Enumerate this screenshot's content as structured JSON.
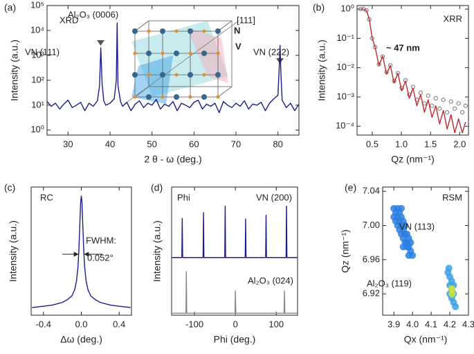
{
  "chart_data": [
    {
      "type": "line",
      "panel_label": "(a)",
      "xlabel": "2 θ - ω (deg.)",
      "ylabel": "Intensity (a.u.)",
      "xlim": [
        25,
        85
      ],
      "xticks": [
        30,
        40,
        50,
        60,
        70,
        80
      ],
      "ylog": true,
      "ylim": [
        0.63,
        100000
      ],
      "yticks": [
        {
          "value": 1,
          "label": "10⁰"
        },
        {
          "value": 10,
          "label": "10¹"
        },
        {
          "value": 100,
          "label": "10²"
        },
        {
          "value": 1000,
          "label": "10³"
        },
        {
          "value": 10000,
          "label": "10⁴"
        },
        {
          "value": 100000,
          "label": "10⁵"
        }
      ],
      "x": [
        25,
        26,
        27,
        28,
        29,
        30,
        31,
        32,
        33,
        34,
        35,
        36,
        37,
        37.5,
        37.8,
        38.1,
        38.5,
        39,
        40,
        41,
        41.5,
        41.7,
        41.9,
        42.5,
        43,
        44,
        45,
        46,
        47,
        48,
        49,
        50,
        51,
        52,
        53,
        54,
        55,
        56,
        57,
        58,
        59,
        60,
        61,
        62,
        63,
        64,
        65,
        66,
        67,
        68,
        69,
        70,
        71,
        72,
        73,
        74,
        75,
        76,
        77,
        78,
        79,
        80,
        80.3,
        80.5,
        80.7,
        81,
        82,
        83,
        84,
        85
      ],
      "series": [
        {
          "color": "#1a1a8c",
          "mode": "line",
          "values": [
            14,
            9,
            12,
            7,
            11,
            16,
            8,
            10,
            13,
            6,
            12,
            9,
            15,
            60,
            2000,
            80,
            15,
            10,
            12,
            18,
            100,
            20000,
            60,
            14,
            9,
            13,
            6,
            11,
            15,
            8,
            12,
            10,
            17,
            7,
            11,
            9,
            14,
            6,
            12,
            10,
            8,
            13,
            16,
            7,
            11,
            9,
            12,
            5,
            14,
            10,
            8,
            12,
            9,
            15,
            7,
            11,
            10,
            13,
            6,
            12,
            18,
            25,
            300,
            2500,
            200,
            16,
            8,
            12,
            6,
            11
          ]
        }
      ],
      "annotations": [
        "XRD",
        "Al₂O₃ (0006)",
        "VN (111)",
        "VN (222)",
        "N",
        "V",
        "[111]"
      ]
    },
    {
      "type": "line",
      "panel_label": "(b)",
      "xlabel": "Qz (nm⁻¹)",
      "ylabel": "Intensity (a.u.)",
      "xlim": [
        0.24,
        2.15
      ],
      "xticks": [
        0.5,
        {
          "value": 1,
          "label": "1.0"
        },
        1.5,
        {
          "value": 2,
          "label": "2.0"
        }
      ],
      "ylog": true,
      "ylim": [
        5e-05,
        1.32
      ],
      "yticks": [
        {
          "value": 0.0001,
          "label": "10⁻⁴"
        },
        {
          "value": 0.001,
          "label": "10⁻³"
        },
        {
          "value": 0.01,
          "label": "10⁻²"
        },
        {
          "value": 0.1,
          "label": "10⁻¹"
        },
        {
          "value": 1,
          "label": "10⁰"
        }
      ],
      "x": [
        0.3,
        0.35,
        0.4,
        0.45,
        0.5,
        0.55,
        0.615,
        0.68,
        0.745,
        0.81,
        0.875,
        0.94,
        1.005,
        1.07,
        1.135,
        1.2,
        1.265,
        1.33,
        1.395,
        1.46,
        1.525,
        1.59,
        1.655,
        1.72,
        1.785,
        1.85,
        1.915,
        1.98,
        2.045,
        2.1
      ],
      "series": [
        {
          "color": "#777777",
          "mode": "markers",
          "values": [
            1.0,
            1.0,
            0.9,
            0.45,
            0.1,
            0.05,
            0.013,
            0.024,
            0.007,
            0.012,
            0.0035,
            0.0065,
            0.002,
            0.0037,
            0.0012,
            0.0022,
            0.0008,
            0.0014,
            0.0006,
            0.0011,
            0.0005,
            0.0009,
            0.0004,
            0.0008,
            0.0003,
            0.0007,
            0.0004,
            0.0006,
            0.0003,
            0.0005
          ]
        },
        {
          "color": "#c0282a",
          "mode": "line",
          "values": [
            1.0,
            1.0,
            0.9,
            0.45,
            0.1,
            0.05,
            0.012,
            0.025,
            0.006,
            0.012,
            0.003,
            0.0065,
            0.0016,
            0.0035,
            0.0009,
            0.002,
            0.0005,
            0.0012,
            0.0003,
            0.0008,
            0.0002,
            0.0005,
            0.00012,
            0.00035,
            8e-05,
            0.00025,
            6e-05,
            0.00018,
            6e-05,
            0.00014
          ]
        }
      ],
      "annotations": [
        "XRR",
        "~ 47 nm"
      ]
    },
    {
      "type": "line",
      "panel_label": "(c)",
      "xlabel": "Δω (deg.)",
      "ylabel": "Intensity (a.u.)",
      "xlim": [
        -0.53,
        0.53
      ],
      "xticks": [
        -0.4,
        {
          "value": 0,
          "label": "0.0"
        },
        0.4
      ],
      "ylim": [
        0,
        1
      ],
      "x": [
        -0.52,
        -0.4,
        -0.3,
        -0.2,
        -0.15,
        -0.1,
        -0.07,
        -0.05,
        -0.035,
        -0.026,
        -0.015,
        -0.007,
        0,
        0.007,
        0.015,
        0.026,
        0.035,
        0.05,
        0.07,
        0.1,
        0.15,
        0.2,
        0.3,
        0.4,
        0.52
      ],
      "series": [
        {
          "color": "#1a1a8c",
          "mode": "line",
          "values": [
            0.06,
            0.07,
            0.08,
            0.1,
            0.12,
            0.15,
            0.2,
            0.27,
            0.38,
            0.5,
            0.72,
            0.88,
            0.93,
            0.88,
            0.72,
            0.5,
            0.38,
            0.27,
            0.2,
            0.15,
            0.12,
            0.1,
            0.08,
            0.07,
            0.06
          ]
        }
      ],
      "annotations": [
        "RC",
        "FWHM:",
        "0.052°"
      ]
    },
    {
      "type": "line",
      "panel_label": "(d)",
      "xlabel": "Phi (deg.)",
      "ylabel": "Intensity (a.u.)",
      "xlim": [
        -156,
        152
      ],
      "xticks": [
        -100,
        0,
        100
      ],
      "ylim": [
        0,
        2
      ],
      "series": [
        {
          "name": "VN (200)",
          "color": "#1a1a8c",
          "mode": "line",
          "x": [
            -156,
            -131,
            -130,
            -129,
            -79,
            -78,
            -77,
            -26,
            -25,
            -24,
            24,
            25,
            26,
            74,
            75,
            76,
            124,
            125,
            126,
            152
          ],
          "values": [
            0.9,
            0.9,
            1.51,
            0.9,
            0.9,
            1.6,
            0.9,
            0.9,
            1.7,
            0.9,
            0.9,
            1.5,
            0.9,
            0.9,
            1.56,
            0.9,
            0.9,
            1.7,
            0.9,
            0.9
          ]
        },
        {
          "name": "Al₂O₃ (024)",
          "color": "#888888",
          "mode": "line",
          "x": [
            -156,
            -121,
            -120,
            -119,
            -1,
            0,
            1,
            119,
            120,
            121,
            152
          ],
          "values": [
            0.03,
            0.03,
            0.68,
            0.03,
            0.03,
            0.38,
            0.03,
            0.03,
            0.38,
            0.03,
            0.03
          ]
        }
      ],
      "annotations": [
        "Phi"
      ]
    },
    {
      "type": "scatter",
      "panel_label": "(e)",
      "xlabel": "Qx (nm⁻¹)",
      "ylabel": "Qz (nm⁻¹)",
      "xlim": [
        3.84,
        4.3
      ],
      "xticks": [
        3.9,
        {
          "value": 4,
          "label": "4.0"
        },
        4.1,
        4.2,
        4.3
      ],
      "ylim": [
        6.895,
        7.045
      ],
      "yticks": [
        6.92,
        6.96,
        {
          "value": 7,
          "label": "7.00"
        },
        7.04
      ],
      "series": [
        {
          "name": "VN (113)",
          "color": "#2a7fe0",
          "x": [
            3.9,
            3.91,
            3.92,
            3.93,
            3.94,
            3.95,
            3.96,
            3.97,
            3.98,
            3.99,
            3.92,
            3.93,
            3.94,
            3.95,
            3.96,
            3.97,
            3.98,
            3.99,
            3.91,
            3.92,
            3.93,
            3.94,
            3.95,
            3.96,
            3.97,
            3.98,
            3.94,
            3.9,
            4.0,
            3.95
          ],
          "values": [
            7.02,
            7.015,
            7.01,
            7.005,
            7.0,
            6.995,
            6.99,
            6.98,
            6.975,
            6.97,
            7.02,
            7.015,
            7.01,
            7.005,
            7.0,
            6.99,
            6.985,
            6.98,
            7.005,
            7.0,
            6.995,
            6.99,
            6.985,
            6.98,
            6.975,
            6.965,
            7.02,
            7.01,
            6.965,
            6.975
          ]
        },
        {
          "name": "Al₂O₃ (119)",
          "color": "#3aa0e8",
          "x": [
            4.19,
            4.2,
            4.2,
            4.21,
            4.21,
            4.22,
            4.22,
            4.23,
            4.2,
            4.21,
            4.22,
            4.195
          ],
          "values": [
            6.945,
            6.94,
            6.93,
            6.935,
            6.925,
            6.92,
            6.91,
            6.905,
            6.92,
            6.915,
            6.93,
            6.95
          ]
        },
        {
          "color": "#d8e830",
          "x": [
            4.21,
            4.212
          ],
          "values": [
            6.926,
            6.92
          ]
        }
      ],
      "annotations": [
        "RSM"
      ]
    }
  ]
}
